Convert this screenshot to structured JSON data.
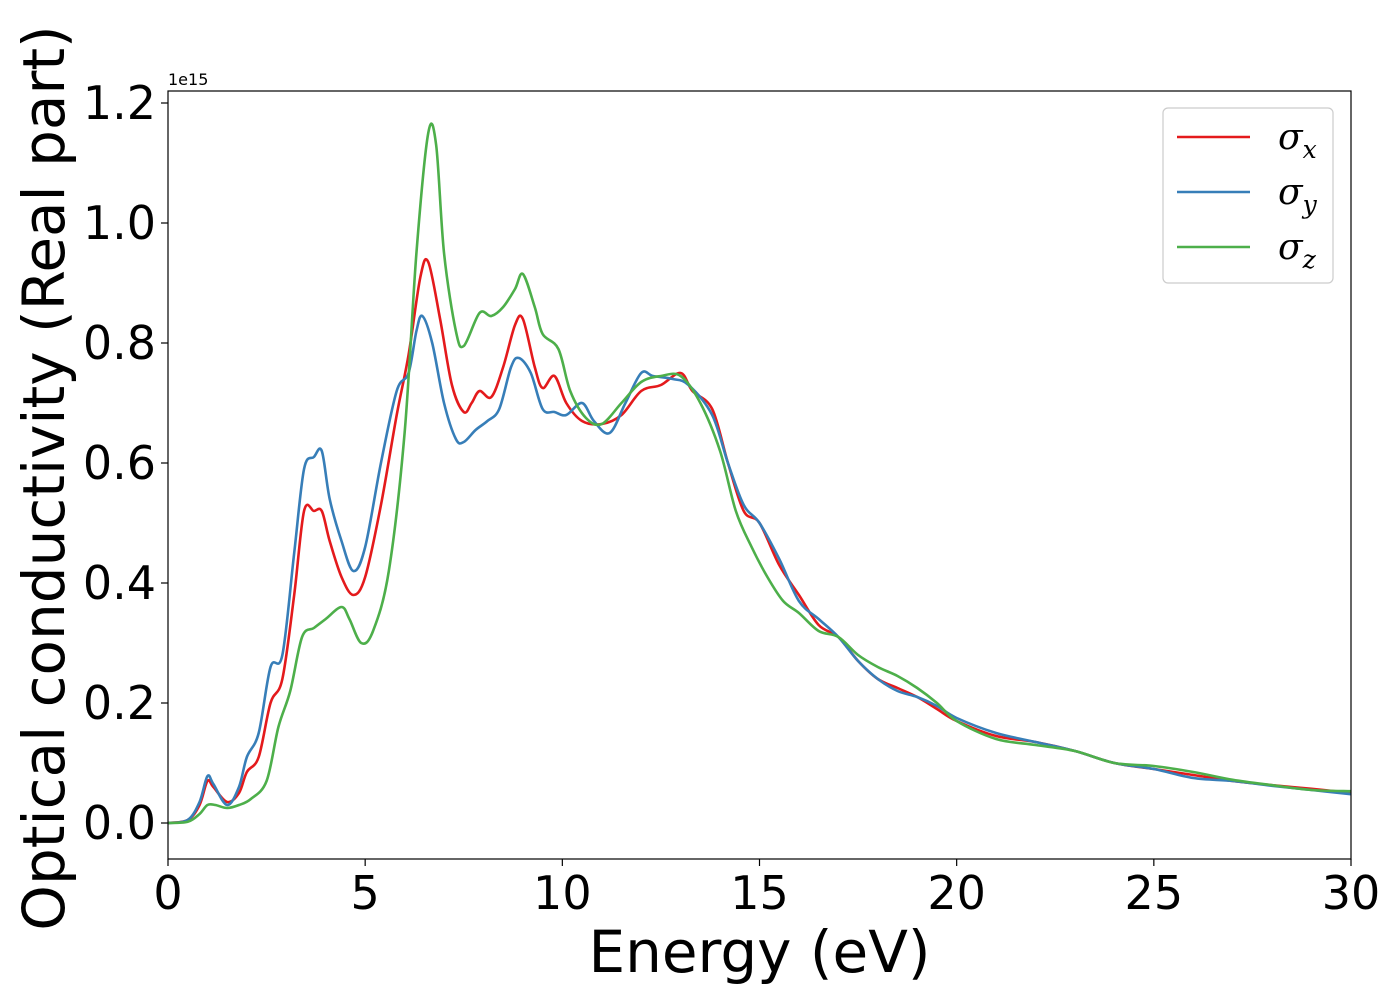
{
  "chart_data": {
    "type": "line",
    "xlabel": "Energy (eV)",
    "ylabel": "Optical conductivity (Real part)",
    "offset_text": "1e15",
    "xlim": [
      0,
      30
    ],
    "ylim": [
      -0.06,
      1.22
    ],
    "xticks": [
      "0",
      "5",
      "10",
      "15",
      "20",
      "25",
      "30"
    ],
    "yticks": [
      "0.0",
      "0.2",
      "0.4",
      "0.6",
      "0.8",
      "1.0",
      "1.2"
    ],
    "grid": false,
    "legend_position": "top-right",
    "series": [
      {
        "name": "σx",
        "symbol": "σ",
        "subscript": "x",
        "color": "#e41a1c",
        "points": [
          [
            0,
            0
          ],
          [
            0.5,
            0.005
          ],
          [
            0.8,
            0.03
          ],
          [
            1.0,
            0.07
          ],
          [
            1.15,
            0.06
          ],
          [
            1.5,
            0.035
          ],
          [
            1.8,
            0.05
          ],
          [
            2.0,
            0.085
          ],
          [
            2.3,
            0.11
          ],
          [
            2.6,
            0.2
          ],
          [
            2.9,
            0.24
          ],
          [
            3.2,
            0.38
          ],
          [
            3.45,
            0.52
          ],
          [
            3.7,
            0.52
          ],
          [
            3.9,
            0.52
          ],
          [
            4.1,
            0.47
          ],
          [
            4.4,
            0.41
          ],
          [
            4.7,
            0.38
          ],
          [
            5.0,
            0.41
          ],
          [
            5.4,
            0.53
          ],
          [
            5.8,
            0.68
          ],
          [
            6.1,
            0.78
          ],
          [
            6.4,
            0.91
          ],
          [
            6.6,
            0.935
          ],
          [
            6.9,
            0.84
          ],
          [
            7.2,
            0.73
          ],
          [
            7.5,
            0.685
          ],
          [
            7.7,
            0.7
          ],
          [
            7.9,
            0.72
          ],
          [
            8.2,
            0.71
          ],
          [
            8.5,
            0.76
          ],
          [
            8.8,
            0.83
          ],
          [
            9.0,
            0.84
          ],
          [
            9.3,
            0.76
          ],
          [
            9.5,
            0.725
          ],
          [
            9.8,
            0.745
          ],
          [
            10.1,
            0.7
          ],
          [
            10.5,
            0.67
          ],
          [
            11.0,
            0.665
          ],
          [
            11.5,
            0.68
          ],
          [
            12.0,
            0.72
          ],
          [
            12.5,
            0.73
          ],
          [
            13.0,
            0.75
          ],
          [
            13.3,
            0.72
          ],
          [
            13.8,
            0.69
          ],
          [
            14.2,
            0.6
          ],
          [
            14.6,
            0.52
          ],
          [
            15.0,
            0.5
          ],
          [
            15.5,
            0.43
          ],
          [
            16.0,
            0.38
          ],
          [
            16.5,
            0.33
          ],
          [
            17.0,
            0.31
          ],
          [
            17.5,
            0.27
          ],
          [
            18.0,
            0.24
          ],
          [
            18.5,
            0.225
          ],
          [
            19.0,
            0.21
          ],
          [
            19.5,
            0.19
          ],
          [
            20.0,
            0.17
          ],
          [
            21.0,
            0.145
          ],
          [
            22.0,
            0.135
          ],
          [
            23.0,
            0.12
          ],
          [
            24.0,
            0.1
          ],
          [
            25.0,
            0.09
          ],
          [
            26.0,
            0.08
          ],
          [
            27.0,
            0.07
          ],
          [
            28.0,
            0.063
          ],
          [
            29.0,
            0.057
          ],
          [
            30.0,
            0.05
          ]
        ]
      },
      {
        "name": "σy",
        "symbol": "σ",
        "subscript": "y",
        "color": "#377eb8",
        "points": [
          [
            0,
            0
          ],
          [
            0.5,
            0.005
          ],
          [
            0.8,
            0.035
          ],
          [
            1.0,
            0.078
          ],
          [
            1.15,
            0.065
          ],
          [
            1.5,
            0.03
          ],
          [
            1.8,
            0.06
          ],
          [
            2.0,
            0.11
          ],
          [
            2.3,
            0.15
          ],
          [
            2.6,
            0.26
          ],
          [
            2.9,
            0.28
          ],
          [
            3.2,
            0.45
          ],
          [
            3.45,
            0.59
          ],
          [
            3.7,
            0.61
          ],
          [
            3.9,
            0.62
          ],
          [
            4.1,
            0.54
          ],
          [
            4.4,
            0.47
          ],
          [
            4.7,
            0.42
          ],
          [
            5.0,
            0.46
          ],
          [
            5.4,
            0.6
          ],
          [
            5.8,
            0.72
          ],
          [
            6.1,
            0.75
          ],
          [
            6.3,
            0.82
          ],
          [
            6.45,
            0.845
          ],
          [
            6.7,
            0.8
          ],
          [
            7.0,
            0.7
          ],
          [
            7.3,
            0.64
          ],
          [
            7.5,
            0.635
          ],
          [
            7.8,
            0.655
          ],
          [
            8.1,
            0.67
          ],
          [
            8.4,
            0.69
          ],
          [
            8.7,
            0.76
          ],
          [
            8.9,
            0.775
          ],
          [
            9.2,
            0.75
          ],
          [
            9.5,
            0.69
          ],
          [
            9.8,
            0.685
          ],
          [
            10.1,
            0.68
          ],
          [
            10.5,
            0.7
          ],
          [
            10.8,
            0.67
          ],
          [
            11.2,
            0.65
          ],
          [
            11.6,
            0.7
          ],
          [
            12.0,
            0.75
          ],
          [
            12.3,
            0.745
          ],
          [
            12.8,
            0.74
          ],
          [
            13.2,
            0.73
          ],
          [
            13.8,
            0.68
          ],
          [
            14.2,
            0.6
          ],
          [
            14.6,
            0.53
          ],
          [
            15.0,
            0.5
          ],
          [
            15.5,
            0.44
          ],
          [
            16.0,
            0.37
          ],
          [
            16.5,
            0.34
          ],
          [
            17.0,
            0.31
          ],
          [
            17.5,
            0.27
          ],
          [
            18.0,
            0.24
          ],
          [
            18.5,
            0.22
          ],
          [
            19.0,
            0.21
          ],
          [
            19.5,
            0.195
          ],
          [
            20.0,
            0.175
          ],
          [
            21.0,
            0.15
          ],
          [
            22.0,
            0.135
          ],
          [
            23.0,
            0.12
          ],
          [
            24.0,
            0.1
          ],
          [
            25.0,
            0.09
          ],
          [
            26.0,
            0.075
          ],
          [
            27.0,
            0.07
          ],
          [
            28.0,
            0.062
          ],
          [
            29.0,
            0.055
          ],
          [
            30.0,
            0.048
          ]
        ]
      },
      {
        "name": "σz",
        "symbol": "σ",
        "subscript": "z",
        "color": "#4daf4a",
        "points": [
          [
            0,
            0
          ],
          [
            0.5,
            0.002
          ],
          [
            0.8,
            0.015
          ],
          [
            1.0,
            0.03
          ],
          [
            1.2,
            0.03
          ],
          [
            1.5,
            0.025
          ],
          [
            1.8,
            0.03
          ],
          [
            2.1,
            0.04
          ],
          [
            2.5,
            0.07
          ],
          [
            2.8,
            0.16
          ],
          [
            3.1,
            0.22
          ],
          [
            3.4,
            0.31
          ],
          [
            3.7,
            0.325
          ],
          [
            4.0,
            0.34
          ],
          [
            4.4,
            0.36
          ],
          [
            4.6,
            0.34
          ],
          [
            4.9,
            0.3
          ],
          [
            5.2,
            0.32
          ],
          [
            5.6,
            0.42
          ],
          [
            6.0,
            0.65
          ],
          [
            6.3,
            0.95
          ],
          [
            6.6,
            1.15
          ],
          [
            6.8,
            1.13
          ],
          [
            7.0,
            0.95
          ],
          [
            7.3,
            0.82
          ],
          [
            7.5,
            0.795
          ],
          [
            7.9,
            0.85
          ],
          [
            8.2,
            0.845
          ],
          [
            8.5,
            0.86
          ],
          [
            8.8,
            0.89
          ],
          [
            9.0,
            0.915
          ],
          [
            9.3,
            0.86
          ],
          [
            9.5,
            0.815
          ],
          [
            9.9,
            0.79
          ],
          [
            10.2,
            0.72
          ],
          [
            10.6,
            0.675
          ],
          [
            11.0,
            0.665
          ],
          [
            11.5,
            0.7
          ],
          [
            12.0,
            0.735
          ],
          [
            12.5,
            0.745
          ],
          [
            13.0,
            0.745
          ],
          [
            13.5,
            0.7
          ],
          [
            14.0,
            0.62
          ],
          [
            14.4,
            0.52
          ],
          [
            14.8,
            0.46
          ],
          [
            15.2,
            0.41
          ],
          [
            15.6,
            0.37
          ],
          [
            16.0,
            0.35
          ],
          [
            16.5,
            0.32
          ],
          [
            17.0,
            0.31
          ],
          [
            17.5,
            0.28
          ],
          [
            18.0,
            0.26
          ],
          [
            18.5,
            0.245
          ],
          [
            19.0,
            0.225
          ],
          [
            19.5,
            0.2
          ],
          [
            20.0,
            0.17
          ],
          [
            21.0,
            0.14
          ],
          [
            22.0,
            0.13
          ],
          [
            23.0,
            0.12
          ],
          [
            24.0,
            0.1
          ],
          [
            25.0,
            0.095
          ],
          [
            26.0,
            0.085
          ],
          [
            27.0,
            0.072
          ],
          [
            28.0,
            0.063
          ],
          [
            29.0,
            0.055
          ],
          [
            30.0,
            0.053
          ]
        ]
      }
    ]
  }
}
